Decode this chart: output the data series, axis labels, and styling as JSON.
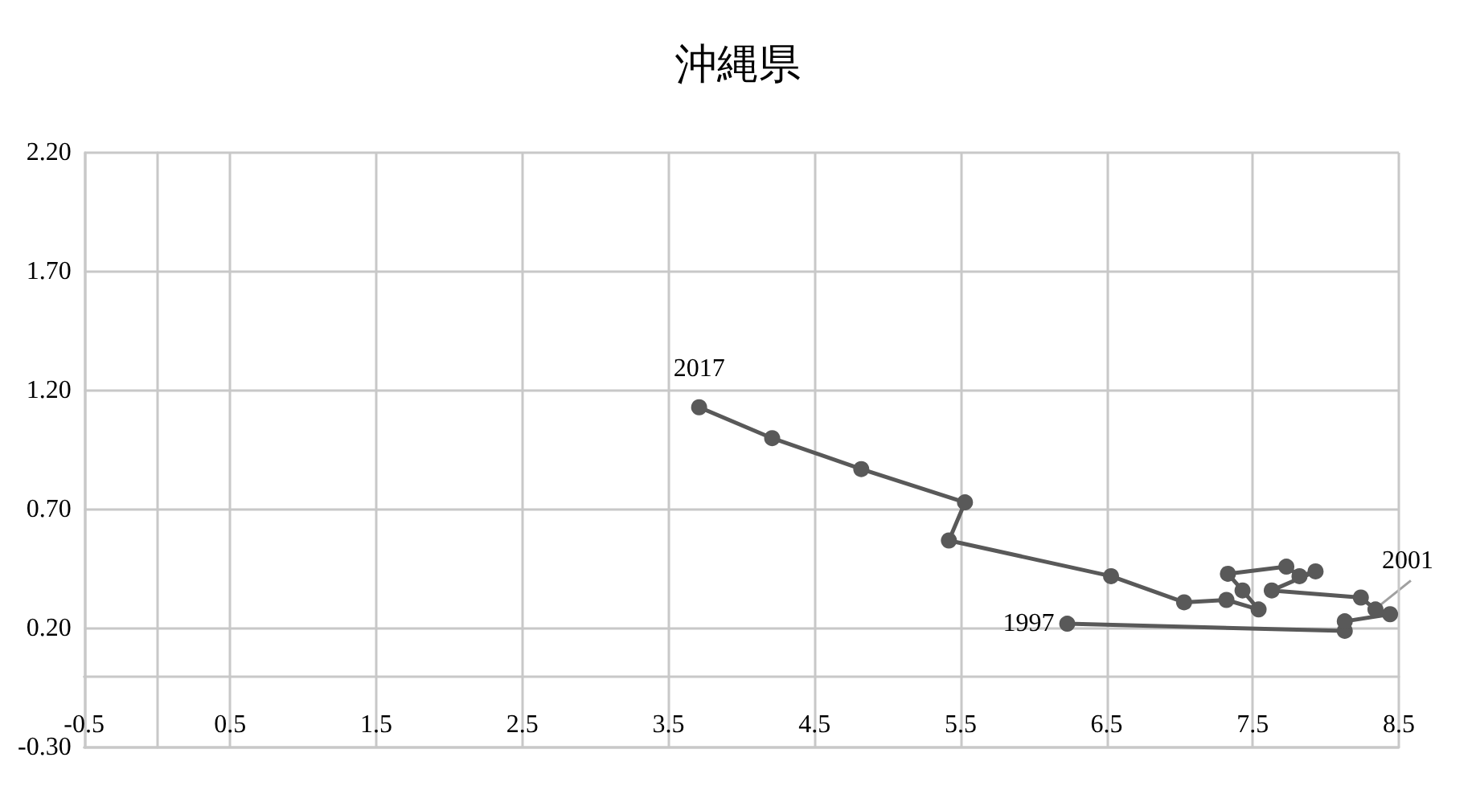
{
  "chart_data": {
    "type": "line",
    "title": "沖縄県",
    "x": [
      6.23,
      8.13,
      8.13,
      8.44,
      8.34,
      8.24,
      7.63,
      7.93,
      7.82,
      7.73,
      7.33,
      7.43,
      7.54,
      7.32,
      7.03,
      6.53,
      5.42,
      5.53,
      4.82,
      4.21,
      3.71
    ],
    "series": [
      {
        "color": "#595959",
        "values": [
          0.22,
          0.19,
          0.23,
          0.26,
          0.28,
          0.33,
          0.36,
          0.44,
          0.42,
          0.46,
          0.43,
          0.36,
          0.28,
          0.32,
          0.31,
          0.42,
          0.57,
          0.73,
          0.87,
          1.0,
          1.13
        ]
      }
    ],
    "xlim": [
      -0.5,
      8.5
    ],
    "xticks": [
      -0.5,
      0.5,
      1.5,
      2.5,
      3.5,
      4.5,
      5.5,
      6.5,
      7.5,
      8.5
    ],
    "ylim": [
      -0.3,
      2.2
    ],
    "yticks": [
      {
        "value": -0.3,
        "label": "-0.30"
      },
      {
        "value": 0.2,
        "label": "0.20"
      },
      {
        "value": 0.7,
        "label": "0.70"
      },
      {
        "value": 1.2,
        "label": "1.20"
      },
      {
        "value": 1.7,
        "label": "1.70"
      },
      {
        "value": 2.2,
        "label": "2.20"
      }
    ],
    "annotations": [
      {
        "text": "1997",
        "x": 6.23,
        "y": 0.22
      },
      {
        "text": "2001",
        "x": 8.34,
        "y": 0.28
      },
      {
        "text": "2017",
        "x": 3.71,
        "y": 1.13
      }
    ],
    "grid": true,
    "marker": "circle",
    "line_style": "solid"
  }
}
